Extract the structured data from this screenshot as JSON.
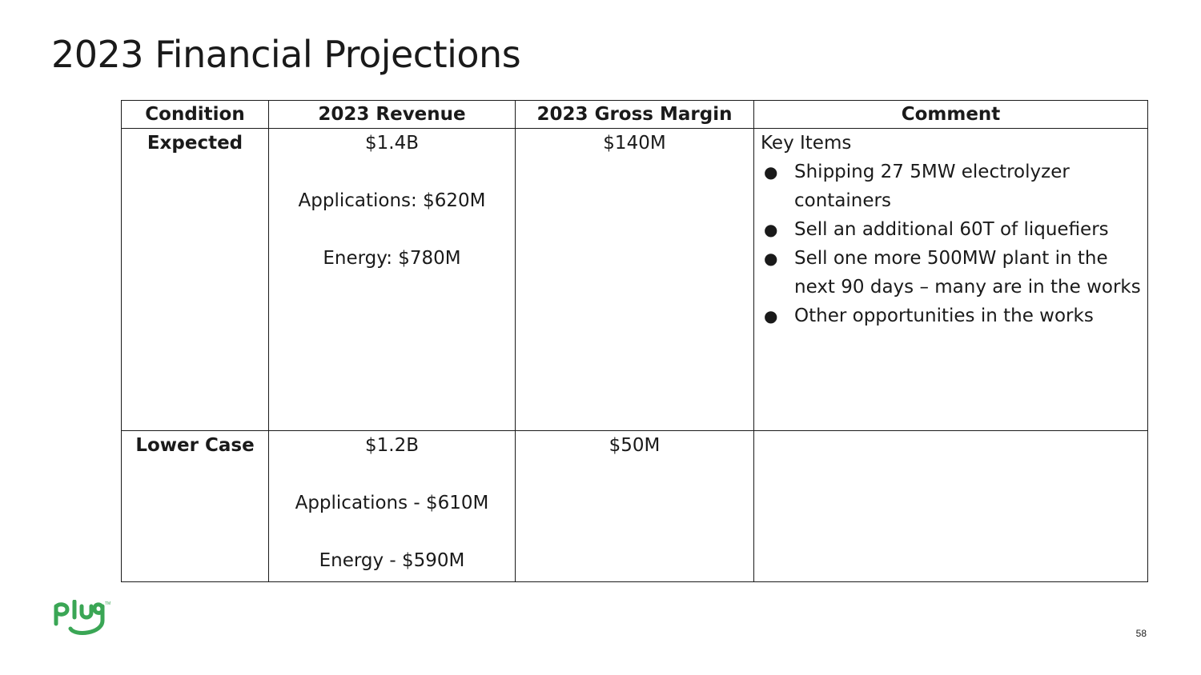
{
  "title": "2023 Financial Projections",
  "table": {
    "headers": [
      "Condition",
      "2023 Revenue",
      "2023 Gross Margin",
      "Comment"
    ],
    "rows": [
      {
        "condition": "Expected",
        "revenue_total": "$1.4B",
        "revenue_applications": "Applications: $620M",
        "revenue_energy": "Energy: $780M",
        "gross_margin": "$140M",
        "comment_heading": "Key Items",
        "comment_items": [
          "Shipping 27 5MW electrolyzer containers",
          "Sell an additional 60T of liquefiers",
          "Sell one more 500MW plant in the next 90 days – many are in the works",
          "Other opportunities in the works"
        ]
      },
      {
        "condition": "Lower Case",
        "revenue_total": "$1.2B",
        "revenue_applications": "Applications - $610M",
        "revenue_energy": "Energy - $590M",
        "gross_margin": "$50M",
        "comment_heading": "",
        "comment_items": []
      }
    ]
  },
  "logo": {
    "icon": "plug-logo-icon",
    "text": "plug",
    "color": "#3aa655"
  },
  "page_number": "58"
}
